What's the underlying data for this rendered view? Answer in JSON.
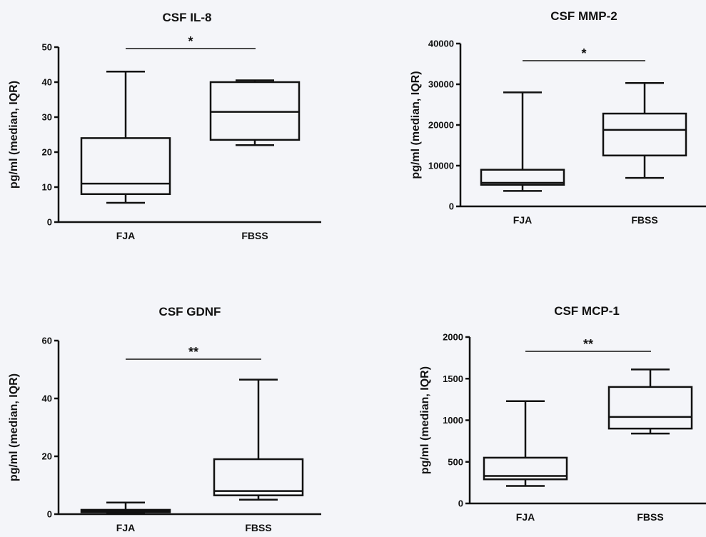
{
  "chart_data": [
    {
      "type": "box",
      "title": "CSF IL-8",
      "ylabel": "pg/ml (median, IQR)",
      "ylim": [
        0,
        50
      ],
      "yticks": [
        "0",
        "10",
        "20",
        "30",
        "40",
        "50"
      ],
      "categories": [
        "FJA",
        "FBSS"
      ],
      "boxes": [
        {
          "min": 5.5,
          "q1": 8,
          "median": 11,
          "q3": 24,
          "max": 43
        },
        {
          "min": 22,
          "q1": 23.5,
          "median": 31.5,
          "q3": 40,
          "max": 40.5
        }
      ],
      "significance": "*"
    },
    {
      "type": "box",
      "title": "CSF MMP-2",
      "ylabel": "pg/ml (median, IQR)",
      "ylim": [
        0,
        40000
      ],
      "yticks": [
        "0",
        "10000",
        "20000",
        "30000",
        "40000"
      ],
      "categories": [
        "FJA",
        "FBSS"
      ],
      "boxes": [
        {
          "min": 3800,
          "q1": 5300,
          "median": 5800,
          "q3": 9000,
          "max": 28000
        },
        {
          "min": 7000,
          "q1": 12500,
          "median": 18800,
          "q3": 22800,
          "max": 30300
        }
      ],
      "significance": "*"
    },
    {
      "type": "box",
      "title": "CSF GDNF",
      "ylabel": "pg/ml (median, IQR)",
      "ylim": [
        0,
        60
      ],
      "yticks": [
        "0",
        "20",
        "40",
        "60"
      ],
      "categories": [
        "FJA",
        "FBSS"
      ],
      "boxes": [
        {
          "min": 0.3,
          "q1": 0.7,
          "median": 1.0,
          "q3": 1.5,
          "max": 4
        },
        {
          "min": 5,
          "q1": 6.5,
          "median": 8,
          "q3": 19,
          "max": 46.5
        }
      ],
      "significance": "**"
    },
    {
      "type": "box",
      "title": "CSF MCP-1",
      "ylabel": "pg/ml (median, IQR)",
      "ylim": [
        0,
        2000
      ],
      "yticks": [
        "0",
        "500",
        "1000",
        "1500",
        "2000"
      ],
      "categories": [
        "FJA",
        "FBSS"
      ],
      "boxes": [
        {
          "min": 210,
          "q1": 290,
          "median": 330,
          "q3": 550,
          "max": 1230
        },
        {
          "min": 840,
          "q1": 900,
          "median": 1040,
          "q3": 1400,
          "max": 1610
        }
      ],
      "significance": "**"
    }
  ]
}
